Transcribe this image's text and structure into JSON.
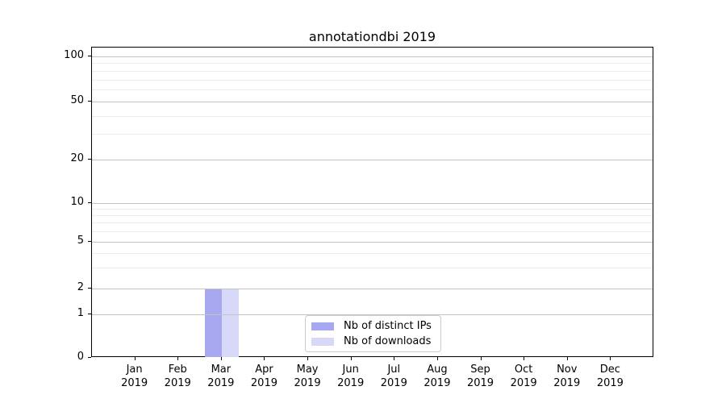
{
  "figure": {
    "title": "annotationdbi 2019",
    "background": "#ffffff"
  },
  "chart_data": {
    "type": "bar",
    "title": "annotationdbi 2019",
    "categories": [
      "Jan",
      "Feb",
      "Mar",
      "Apr",
      "May",
      "Jun",
      "Jul",
      "Aug",
      "Sep",
      "Oct",
      "Nov",
      "Dec"
    ],
    "category_year": "2019",
    "series": [
      {
        "name": "Nb of distinct IPs",
        "color": "#a8a8f0",
        "values": [
          0,
          0,
          2,
          0,
          0,
          0,
          0,
          0,
          0,
          0,
          0,
          0
        ]
      },
      {
        "name": "Nb of downloads",
        "color": "#d8d8f8",
        "values": [
          0,
          0,
          2,
          0,
          0,
          0,
          0,
          0,
          0,
          0,
          0,
          0
        ]
      }
    ],
    "xlabel": "",
    "ylabel": "",
    "y_axis": {
      "scale": "log-like (symlog)",
      "tick_values": [
        0,
        1,
        2,
        5,
        10,
        20,
        50,
        100
      ],
      "minor_gridline_values": [
        3,
        4,
        6,
        7,
        8,
        9,
        30,
        40,
        60,
        70,
        80,
        90
      ],
      "ylim_top_value": 115
    },
    "grid": "both (major + faint minor horizontal gridlines)",
    "legend": {
      "position": "inside axes, lower center",
      "entries": [
        "Nb of distinct IPs",
        "Nb of downloads"
      ]
    },
    "colors": {
      "bar_distinct_ips": "#a8a8f0",
      "bar_downloads": "#d8d8f8",
      "major_grid": "#c4c4c4",
      "minor_grid": "#ededed",
      "axis": "#000000",
      "legend_border": "#cccccc",
      "background": "#ffffff"
    }
  }
}
